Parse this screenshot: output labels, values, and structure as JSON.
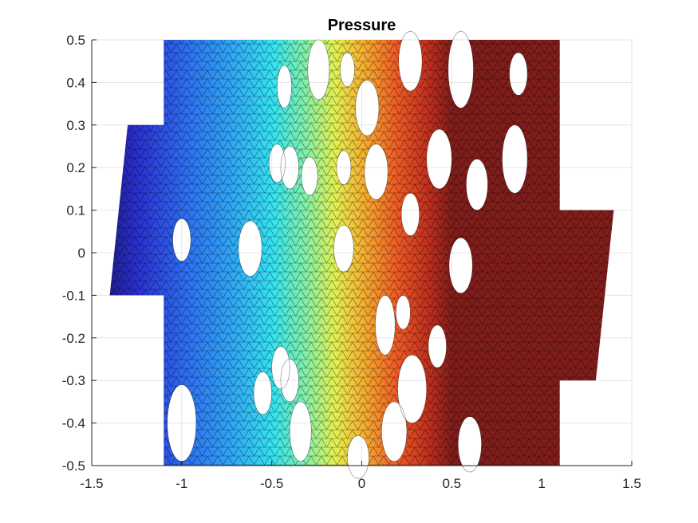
{
  "chart_data": {
    "type": "heatmap",
    "title": "Pressure",
    "xlabel": "",
    "ylabel": "",
    "xlim": [
      -1.5,
      1.5
    ],
    "ylim": [
      -0.5,
      0.5
    ],
    "x_ticks": [
      -1.5,
      -1,
      -0.5,
      0,
      0.5,
      1,
      1.5
    ],
    "y_ticks": [
      -0.5,
      -0.4,
      -0.3,
      -0.2,
      -0.1,
      0,
      0.1,
      0.2,
      0.3,
      0.4,
      0.5
    ],
    "x_tick_labels": [
      "-1.5",
      "-1",
      "-0.5",
      "0",
      "0.5",
      "1",
      "1.5"
    ],
    "y_tick_labels": [
      "-0.5",
      "-0.4",
      "-0.3",
      "-0.2",
      "-0.1",
      "0",
      "0.1",
      "0.2",
      "0.3",
      "0.4",
      "0.5"
    ],
    "grid": true,
    "colormap": "jet",
    "mesh": "triangular",
    "domain": {
      "main_rect": {
        "x": [
          -1.1,
          1.1
        ],
        "y": [
          -0.5,
          0.5
        ]
      },
      "left_extension": [
        [
          -1.1,
          0.3
        ],
        [
          -1.3,
          0.3
        ],
        [
          -1.4,
          -0.1
        ],
        [
          -1.1,
          -0.1
        ]
      ],
      "right_extension": [
        [
          1.1,
          0.1
        ],
        [
          1.4,
          0.1
        ],
        [
          1.3,
          -0.3
        ],
        [
          1.1,
          -0.3
        ]
      ]
    },
    "pressure_field": {
      "low_x": -1.4,
      "high_x": 0.5,
      "saturated_color": "#7f1d1a"
    },
    "holes": [
      {
        "cx": -1.0,
        "cy": 0.03,
        "rx": 0.05,
        "ry": 0.05
      },
      {
        "cx": -0.62,
        "cy": 0.01,
        "rx": 0.065,
        "ry": 0.065
      },
      {
        "cx": -0.47,
        "cy": 0.21,
        "rx": 0.045,
        "ry": 0.045
      },
      {
        "cx": -0.4,
        "cy": 0.2,
        "rx": 0.05,
        "ry": 0.05
      },
      {
        "cx": -0.29,
        "cy": 0.18,
        "rx": 0.045,
        "ry": 0.045
      },
      {
        "cx": -0.43,
        "cy": 0.39,
        "rx": 0.04,
        "ry": 0.05
      },
      {
        "cx": -0.24,
        "cy": 0.43,
        "rx": 0.06,
        "ry": 0.07
      },
      {
        "cx": -0.08,
        "cy": 0.43,
        "rx": 0.04,
        "ry": 0.04
      },
      {
        "cx": 0.03,
        "cy": 0.34,
        "rx": 0.065,
        "ry": 0.065
      },
      {
        "cx": -0.1,
        "cy": 0.2,
        "rx": 0.04,
        "ry": 0.04
      },
      {
        "cx": 0.08,
        "cy": 0.19,
        "rx": 0.065,
        "ry": 0.065
      },
      {
        "cx": -0.1,
        "cy": 0.01,
        "rx": 0.055,
        "ry": 0.055
      },
      {
        "cx": 0.27,
        "cy": 0.45,
        "rx": 0.065,
        "ry": 0.07
      },
      {
        "cx": 0.55,
        "cy": 0.43,
        "rx": 0.07,
        "ry": 0.09
      },
      {
        "cx": 0.87,
        "cy": 0.42,
        "rx": 0.05,
        "ry": 0.05
      },
      {
        "cx": 0.43,
        "cy": 0.22,
        "rx": 0.07,
        "ry": 0.07
      },
      {
        "cx": 0.85,
        "cy": 0.22,
        "rx": 0.07,
        "ry": 0.08
      },
      {
        "cx": 0.64,
        "cy": 0.16,
        "rx": 0.06,
        "ry": 0.06
      },
      {
        "cx": 0.27,
        "cy": 0.09,
        "rx": 0.05,
        "ry": 0.05
      },
      {
        "cx": 0.55,
        "cy": -0.03,
        "rx": 0.065,
        "ry": 0.065
      },
      {
        "cx": 0.13,
        "cy": -0.17,
        "rx": 0.055,
        "ry": 0.07
      },
      {
        "cx": 0.42,
        "cy": -0.22,
        "rx": 0.05,
        "ry": 0.05
      },
      {
        "cx": 0.28,
        "cy": -0.32,
        "rx": 0.08,
        "ry": 0.08
      },
      {
        "cx": 0.18,
        "cy": -0.42,
        "rx": 0.07,
        "ry": 0.07
      },
      {
        "cx": 0.6,
        "cy": -0.45,
        "rx": 0.065,
        "ry": 0.065
      },
      {
        "cx": -0.45,
        "cy": -0.27,
        "rx": 0.05,
        "ry": 0.05
      },
      {
        "cx": -0.4,
        "cy": -0.3,
        "rx": 0.05,
        "ry": 0.05
      },
      {
        "cx": -0.34,
        "cy": -0.42,
        "rx": 0.06,
        "ry": 0.07
      },
      {
        "cx": -0.55,
        "cy": -0.33,
        "rx": 0.05,
        "ry": 0.05
      },
      {
        "cx": -1.0,
        "cy": -0.4,
        "rx": 0.08,
        "ry": 0.09
      },
      {
        "cx": -0.02,
        "cy": -0.48,
        "rx": 0.06,
        "ry": 0.05
      },
      {
        "cx": 0.23,
        "cy": -0.14,
        "rx": 0.04,
        "ry": 0.04
      }
    ]
  }
}
